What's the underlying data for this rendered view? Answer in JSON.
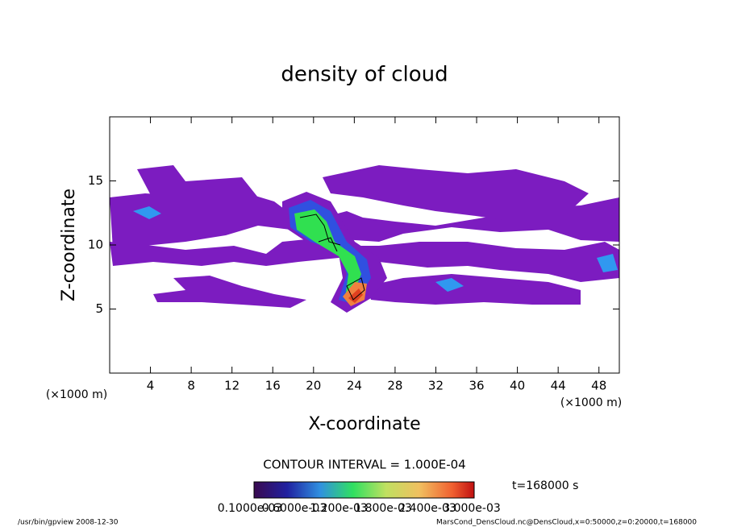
{
  "chart_data": {
    "type": "contour",
    "title": "density of cloud",
    "x_label": "X-coordinate",
    "y_label": "Z-coordinate",
    "x_unit": "(×1000 m)",
    "y_unit": "(×1000 m)",
    "xlim": [
      0,
      50
    ],
    "xticks": [
      4,
      8,
      12,
      16,
      20,
      24,
      28,
      32,
      36,
      40,
      44,
      48
    ],
    "ylim": [
      0,
      20
    ],
    "yticks": [
      5,
      10,
      15
    ],
    "contour_interval": "CONTOUR INTERVAL = 1.000E-04",
    "time_label": "t=168000 s",
    "colorbar_labels": [
      "0.1000e-03",
      "0.6000e-03",
      "1.200e-03",
      "1.800e-03",
      "2.400e-03",
      "3.000e-03"
    ],
    "footer_left": "/usr/bin/gpview  2008-12-30",
    "footer_right": "MarsCond_DensCloud.nc@DensCloud,x=0:50000,z=0:20000,t=168000"
  }
}
